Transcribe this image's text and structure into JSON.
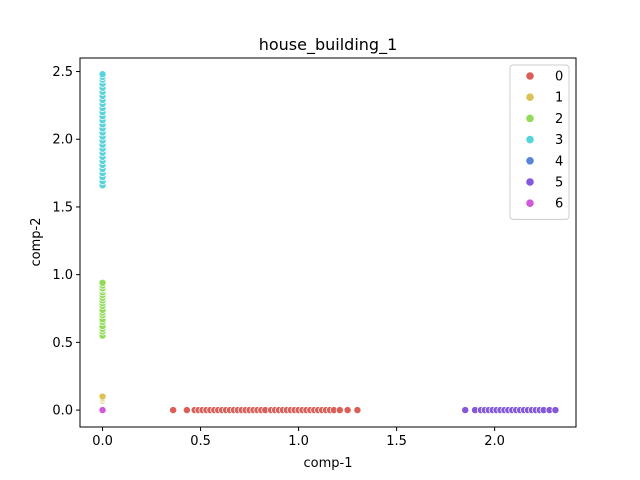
{
  "chart_data": {
    "type": "scatter",
    "title": "house_building_1",
    "xlabel": "comp-1",
    "ylabel": "comp-2",
    "xlim": [
      -0.115,
      2.415
    ],
    "ylim": [
      -0.125,
      2.6
    ],
    "xticks": [
      0.0,
      0.5,
      1.0,
      1.5,
      2.0
    ],
    "xtick_labels": [
      "0.0",
      "0.5",
      "1.0",
      "1.5",
      "2.0"
    ],
    "yticks": [
      0.0,
      0.5,
      1.0,
      1.5,
      2.0,
      2.5
    ],
    "ytick_labels": [
      "0.0",
      "0.5",
      "1.0",
      "1.5",
      "2.0",
      "2.5"
    ],
    "grid": false,
    "legend_position": "top-right",
    "series": [
      {
        "name": "0",
        "color": "#db5f57",
        "points": [
          [
            0.36,
            0
          ],
          [
            0.43,
            0
          ],
          [
            0.47,
            0
          ],
          [
            0.49,
            0
          ],
          [
            0.51,
            0
          ],
          [
            0.53,
            0
          ],
          [
            0.55,
            0
          ],
          [
            0.57,
            0
          ],
          [
            0.59,
            0
          ],
          [
            0.61,
            0
          ],
          [
            0.63,
            0
          ],
          [
            0.65,
            0
          ],
          [
            0.67,
            0
          ],
          [
            0.69,
            0
          ],
          [
            0.71,
            0
          ],
          [
            0.73,
            0
          ],
          [
            0.75,
            0
          ],
          [
            0.77,
            0
          ],
          [
            0.79,
            0
          ],
          [
            0.81,
            0
          ],
          [
            0.83,
            0
          ],
          [
            0.86,
            0
          ],
          [
            0.88,
            0
          ],
          [
            0.9,
            0
          ],
          [
            0.92,
            0
          ],
          [
            0.94,
            0
          ],
          [
            0.96,
            0
          ],
          [
            0.98,
            0
          ],
          [
            1.0,
            0
          ],
          [
            1.02,
            0
          ],
          [
            1.04,
            0
          ],
          [
            1.06,
            0
          ],
          [
            1.08,
            0
          ],
          [
            1.1,
            0
          ],
          [
            1.12,
            0
          ],
          [
            1.14,
            0
          ],
          [
            1.16,
            0
          ],
          [
            1.18,
            0
          ],
          [
            1.21,
            0
          ],
          [
            1.25,
            0
          ],
          [
            1.3,
            0
          ]
        ]
      },
      {
        "name": "1",
        "color": "#dbc257",
        "points": [
          [
            0,
            0.07
          ],
          [
            0,
            0.08
          ],
          [
            0,
            0.09
          ],
          [
            0,
            0.1
          ]
        ]
      },
      {
        "name": "2",
        "color": "#91db57",
        "points": [
          [
            0,
            0.55
          ],
          [
            0,
            0.58
          ],
          [
            0,
            0.6
          ],
          [
            0,
            0.62
          ],
          [
            0,
            0.65
          ],
          [
            0,
            0.67
          ],
          [
            0,
            0.7
          ],
          [
            0,
            0.72
          ],
          [
            0,
            0.74
          ],
          [
            0,
            0.77
          ],
          [
            0,
            0.79
          ],
          [
            0,
            0.81
          ],
          [
            0,
            0.83
          ],
          [
            0,
            0.85
          ],
          [
            0,
            0.87
          ],
          [
            0,
            0.89
          ],
          [
            0,
            0.9
          ],
          [
            0,
            0.92
          ],
          [
            0,
            0.94
          ]
        ]
      },
      {
        "name": "3",
        "color": "#57d3db",
        "points": [
          [
            0,
            1.66
          ],
          [
            0,
            1.69
          ],
          [
            0,
            1.72
          ],
          [
            0,
            1.75
          ],
          [
            0,
            1.78
          ],
          [
            0,
            1.81
          ],
          [
            0,
            1.84
          ],
          [
            0,
            1.87
          ],
          [
            0,
            1.9
          ],
          [
            0,
            1.93
          ],
          [
            0,
            1.96
          ],
          [
            0,
            1.99
          ],
          [
            0,
            2.02
          ],
          [
            0,
            2.05
          ],
          [
            0,
            2.08
          ],
          [
            0,
            2.11
          ],
          [
            0,
            2.14
          ],
          [
            0,
            2.17
          ],
          [
            0,
            2.2
          ],
          [
            0,
            2.23
          ],
          [
            0,
            2.26
          ],
          [
            0,
            2.29
          ],
          [
            0,
            2.32
          ],
          [
            0,
            2.35
          ],
          [
            0,
            2.38
          ],
          [
            0,
            2.41
          ],
          [
            0,
            2.44
          ],
          [
            0,
            2.46
          ],
          [
            0,
            2.48
          ]
        ]
      },
      {
        "name": "4",
        "color": "#5784db",
        "points": []
      },
      {
        "name": "5",
        "color": "#8557db",
        "points": [
          [
            1.85,
            0
          ],
          [
            1.9,
            0
          ],
          [
            1.93,
            0
          ],
          [
            1.95,
            0
          ],
          [
            1.97,
            0
          ],
          [
            1.99,
            0
          ],
          [
            2.01,
            0
          ],
          [
            2.03,
            0
          ],
          [
            2.05,
            0
          ],
          [
            2.07,
            0
          ],
          [
            2.09,
            0
          ],
          [
            2.11,
            0
          ],
          [
            2.13,
            0
          ],
          [
            2.15,
            0
          ],
          [
            2.17,
            0
          ],
          [
            2.19,
            0
          ],
          [
            2.21,
            0
          ],
          [
            2.23,
            0
          ],
          [
            2.25,
            0
          ],
          [
            2.28,
            0
          ],
          [
            2.31,
            0
          ]
        ]
      },
      {
        "name": "6",
        "color": "#d157db",
        "points": [
          [
            0,
            0
          ]
        ]
      }
    ]
  }
}
